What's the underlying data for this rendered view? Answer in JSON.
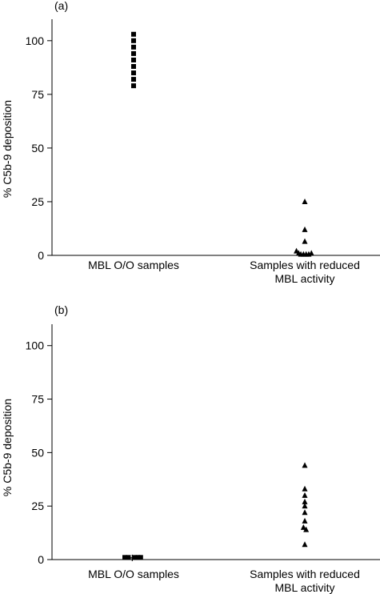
{
  "chart_data": [
    {
      "panel_label": "(a)",
      "type": "scatter",
      "ylabel": "% C5b-9 deposition",
      "ylim": [
        0,
        110
      ],
      "yticks": [
        0,
        25,
        50,
        75,
        100
      ],
      "categories": [
        "MBL O/O samples",
        "Samples with reduced\nMBL activity"
      ],
      "series": [
        {
          "category_index": 0,
          "marker": "square",
          "points": [
            {
              "x": 0,
              "y": 103
            },
            {
              "x": 0,
              "y": 100
            },
            {
              "x": 0,
              "y": 97
            },
            {
              "x": 0,
              "y": 94
            },
            {
              "x": 0,
              "y": 91
            },
            {
              "x": 0,
              "y": 88
            },
            {
              "x": 0,
              "y": 85
            },
            {
              "x": 0,
              "y": 82
            },
            {
              "x": 0,
              "y": 79
            }
          ]
        },
        {
          "category_index": 1,
          "marker": "triangle",
          "points": [
            {
              "x": 0,
              "y": 25
            },
            {
              "x": 0,
              "y": 12
            },
            {
              "x": 0,
              "y": 6.5
            },
            {
              "x": -0.19,
              "y": 2
            },
            {
              "x": -0.14,
              "y": 1
            },
            {
              "x": -0.09,
              "y": 0.5
            },
            {
              "x": -0.03,
              "y": 0.5
            },
            {
              "x": 0.03,
              "y": 0.5
            },
            {
              "x": 0.09,
              "y": 0.5
            },
            {
              "x": 0.15,
              "y": 1
            }
          ]
        }
      ]
    },
    {
      "panel_label": "(b)",
      "type": "scatter",
      "ylabel": "% C5b-9 deposition",
      "ylim": [
        0,
        110
      ],
      "yticks": [
        0,
        25,
        50,
        75,
        100
      ],
      "categories": [
        "MBL O/O samples",
        "Samples with reduced\nMBL activity"
      ],
      "series": [
        {
          "category_index": 0,
          "marker": "square",
          "points": [
            {
              "x": -0.2,
              "y": 1
            },
            {
              "x": -0.12,
              "y": 1
            },
            {
              "x": 0.03,
              "y": 1
            },
            {
              "x": 0.1,
              "y": 1
            },
            {
              "x": 0.16,
              "y": 1
            }
          ]
        },
        {
          "category_index": 0,
          "marker": "cross",
          "points": [
            {
              "x": -0.03,
              "y": 0.8
            }
          ]
        },
        {
          "category_index": 1,
          "marker": "triangle",
          "points": [
            {
              "x": 0,
              "y": 44
            },
            {
              "x": 0,
              "y": 33
            },
            {
              "x": 0,
              "y": 30
            },
            {
              "x": 0,
              "y": 27
            },
            {
              "x": 0,
              "y": 25
            },
            {
              "x": 0,
              "y": 22
            },
            {
              "x": 0,
              "y": 18
            },
            {
              "x": -0.03,
              "y": 15
            },
            {
              "x": 0.03,
              "y": 14
            },
            {
              "x": 0,
              "y": 7
            }
          ]
        }
      ]
    }
  ]
}
